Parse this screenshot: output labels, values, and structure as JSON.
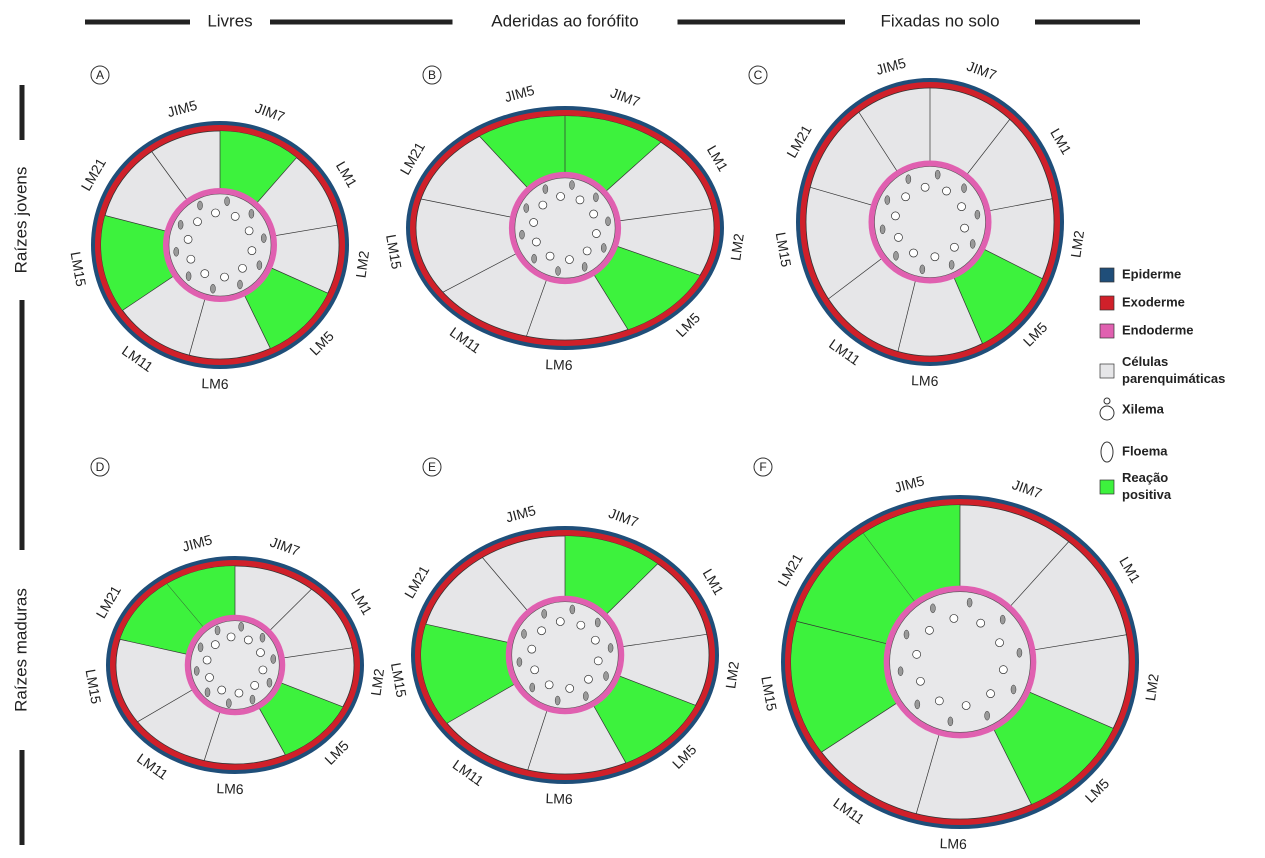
{
  "columns": [
    "Livres",
    "Aderidas ao forófito",
    "Fixadas no solo"
  ],
  "rows": [
    "Raízes jovens",
    "Raízes maduras"
  ],
  "panels": [
    {
      "letter": "A",
      "sectors": [
        "JIM5",
        "JIM7",
        "LM1",
        "LM2",
        "LM5",
        "LM6",
        "LM11",
        "LM15",
        "LM21"
      ]
    },
    {
      "letter": "B",
      "sectors": [
        "JIM5",
        "JIM7",
        "LM1",
        "LM2",
        "LM5",
        "LM6",
        "LM11",
        "LM15",
        "LM21"
      ]
    },
    {
      "letter": "C",
      "sectors": [
        "JIM5",
        "JIM7",
        "LM1",
        "LM2",
        "LM5",
        "LM6",
        "LM11",
        "LM15",
        "LM21"
      ]
    },
    {
      "letter": "D",
      "sectors": [
        "JIM5",
        "JIM7",
        "LM1",
        "LM2",
        "LM5",
        "LM6",
        "LM11",
        "LM15",
        "LM21"
      ]
    },
    {
      "letter": "E",
      "sectors": [
        "JIM5",
        "JIM7",
        "LM1",
        "LM2",
        "LM5",
        "LM6",
        "LM11",
        "LM15",
        "LM21"
      ]
    },
    {
      "letter": "F",
      "sectors": [
        "JIM5",
        "JIM7",
        "LM1",
        "LM2",
        "LM5",
        "LM6",
        "LM11",
        "LM15",
        "LM21"
      ]
    }
  ],
  "legend": [
    [
      "Epiderme"
    ],
    [
      "Exoderme"
    ],
    [
      "Endoderme"
    ],
    [
      "Células",
      "parenquimáticas"
    ],
    [
      "Xilema"
    ],
    [
      "Floema"
    ],
    [
      "Reação",
      "positiva"
    ]
  ]
}
